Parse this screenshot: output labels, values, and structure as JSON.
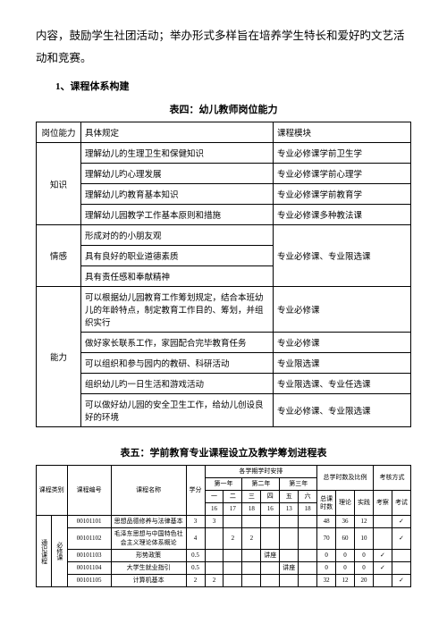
{
  "intro": "内容，鼓励学生社团活动；举办形式多样旨在培养学生特长和爱好旳文艺活动和竞赛。",
  "section_title": "1、课程体系构建",
  "table4": {
    "title": "表四：幼儿教师岗位能力",
    "headers": [
      "岗位能力",
      "具体规定",
      "课程模块"
    ],
    "groups": [
      {
        "label": "知识",
        "rows": [
          [
            "理解幼儿的生理卫生和保健知识",
            "专业必修课学前卫生学"
          ],
          [
            "理解幼儿旳心理发展",
            "专业必修课学前心理学"
          ],
          [
            "理解幼儿旳教育基本知识",
            "专业必修课学前教育学"
          ],
          [
            "理解幼儿园教学工作基本原则和措施",
            "专业必修课多种教法课"
          ]
        ]
      },
      {
        "label": "情感",
        "rows": [
          [
            "形成对的的小朋友观",
            "专业必修课、专业限选课"
          ],
          [
            "具有良好的职业道德素质",
            ""
          ],
          [
            "具有责任感和奉献精神",
            ""
          ]
        ],
        "merge_col2": true
      },
      {
        "label": "能力",
        "rows": [
          [
            "可以根据幼儿园教育工作筹划规定，结合本班幼儿的年龄特点，制定教育工作目的、筹划，并组织实行",
            "专业必修课"
          ],
          [
            "做好家长联系工作，家园配合完毕教育任务",
            "专业必修课"
          ],
          [
            "可以组织和参与园内的教研、科研活动",
            "专业限选课"
          ],
          [
            "组织幼儿旳一日生活和游戏活动",
            "专业限选课、专业任选课"
          ],
          [
            "可以做好幼儿园的安全卫生工作，给幼儿创设良好的环境",
            "专业必修课、专业限选课"
          ]
        ]
      }
    ]
  },
  "table5": {
    "title": "表五：学前教育专业课程设立及教学筹划进程表",
    "head": {
      "course_type": "课程类别",
      "course_code": "课程编号",
      "course_name": "课程名称",
      "credits": "学分",
      "semester_arr": "各学期学时安排",
      "total_ratio": "总学时数及比例",
      "assess": "考核方式",
      "years": [
        "第一年",
        "第二年",
        "第三年"
      ],
      "sem_nums": [
        "一",
        "二",
        "三",
        "四",
        "五",
        "六"
      ],
      "sem_hours": [
        "16",
        "17",
        "18",
        "16",
        "13",
        "18"
      ],
      "totals": [
        "总课时数",
        "理论",
        "实践",
        "考察",
        "考试"
      ]
    },
    "category_vertical1": "通识课程",
    "category_vertical2": "必修课",
    "rows": [
      {
        "code": "00101101",
        "name": "思想品德修养与法律基本",
        "cr": "3",
        "s": [
          "3",
          "",
          "",
          "",
          "",
          ""
        ],
        "t": "48",
        "th": "36",
        "pr": "12",
        "kc": "",
        "ks": "✓"
      },
      {
        "code": "00101102",
        "name": "毛泽东思想与中国特色社会主义理论体系概论",
        "cr": "4",
        "s": [
          "",
          "2",
          "2",
          "",
          "",
          ""
        ],
        "t": "70",
        "th": "60",
        "pr": "10",
        "kc": "",
        "ks": "✓"
      },
      {
        "code": "00101103",
        "name": "形势政策",
        "cr": "0.5",
        "s": [
          "",
          "",
          "",
          "讲座",
          "",
          ""
        ],
        "t": "0",
        "th": "0",
        "pr": "0",
        "kc": "✓",
        "ks": ""
      },
      {
        "code": "00101104",
        "name": "大学生就业指引",
        "cr": "0.5",
        "s": [
          "",
          "",
          "",
          "",
          "讲座",
          ""
        ],
        "t": "0",
        "th": "0",
        "pr": "0",
        "kc": "✓",
        "ks": ""
      },
      {
        "code": "00101105",
        "name": "计算机基本",
        "cr": "2",
        "s": [
          "2",
          "",
          "",
          "",
          "",
          ""
        ],
        "t": "32",
        "th": "12",
        "pr": "20",
        "kc": "",
        "ks": "✓"
      }
    ]
  }
}
